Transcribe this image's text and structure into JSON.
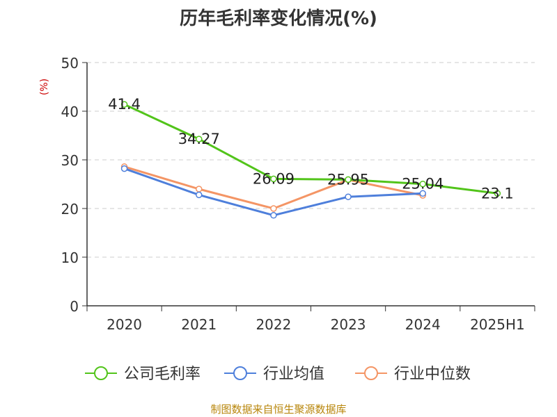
{
  "chart_data": {
    "type": "line",
    "title": "历年毛利率变化情况(%)",
    "ylabel": "(%)",
    "xlabel": "",
    "categories": [
      "2020",
      "2021",
      "2022",
      "2023",
      "2024",
      "2025H1"
    ],
    "ylim": [
      0,
      50
    ],
    "yticks": [
      "0",
      "10",
      "20",
      "30",
      "40",
      "50"
    ],
    "grid": true,
    "legend_position": "bottom",
    "series": [
      {
        "name": "公司毛利率",
        "color": "#52c41a",
        "values": [
          41.4,
          34.27,
          26.09,
          25.95,
          25.04,
          23.1
        ],
        "labels": [
          "41.4",
          "34.27",
          "26.09",
          "25.95",
          "25.04",
          "23.1"
        ]
      },
      {
        "name": "行业均值",
        "color": "#4e7fdb",
        "values": [
          28.2,
          22.8,
          18.6,
          22.4,
          23.1,
          null
        ]
      },
      {
        "name": "行业中位数",
        "color": "#f49565",
        "values": [
          28.6,
          24.0,
          20.0,
          25.9,
          22.7,
          null
        ]
      }
    ]
  },
  "source": "制图数据来自恒生聚源数据库"
}
